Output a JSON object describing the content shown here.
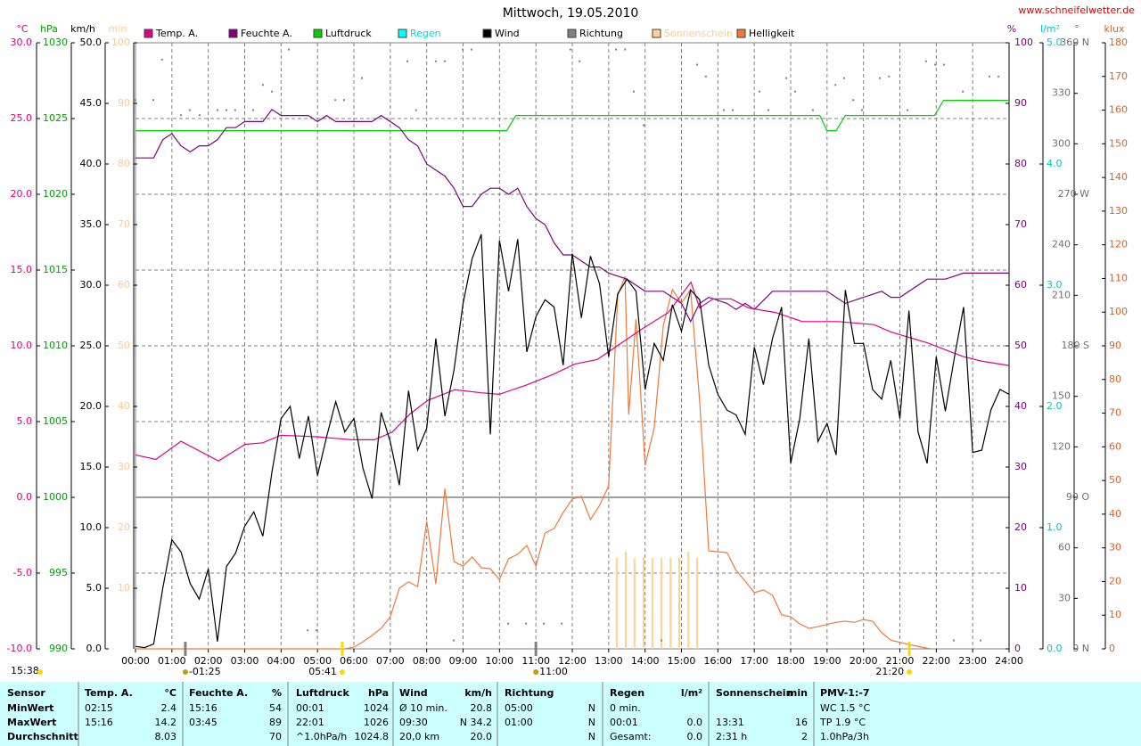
{
  "chart_data": {
    "type": "line",
    "title": "Mittwoch, 19.05.2010",
    "source": "www.schneifelwetter.de",
    "xlim": [
      0,
      24
    ],
    "xticks": [
      {
        "value": 0,
        "label": "00:00"
      },
      {
        "value": 1,
        "label": "01:00"
      },
      {
        "value": 2,
        "label": "02:00"
      },
      {
        "value": 3,
        "label": "03:00"
      },
      {
        "value": 4,
        "label": "04:00"
      },
      {
        "value": 5,
        "label": "05:00"
      },
      {
        "value": 6,
        "label": "06:00"
      },
      {
        "value": 7,
        "label": "07:00"
      },
      {
        "value": 8,
        "label": "08:00"
      },
      {
        "value": 9,
        "label": "09:00"
      },
      {
        "value": 10,
        "label": "10:00"
      },
      {
        "value": 11,
        "label": "11:00"
      },
      {
        "value": 12,
        "label": "12:00"
      },
      {
        "value": 13,
        "label": "13:00"
      },
      {
        "value": 14,
        "label": "14:00"
      },
      {
        "value": 15,
        "label": "15:00"
      },
      {
        "value": 16,
        "label": "16:00"
      },
      {
        "value": 17,
        "label": "17:00"
      },
      {
        "value": 18,
        "label": "18:00"
      },
      {
        "value": 19,
        "label": "19:00"
      },
      {
        "value": 20,
        "label": "20:00"
      },
      {
        "value": 21,
        "label": "21:00"
      },
      {
        "value": 22,
        "label": "22:00"
      },
      {
        "value": 23,
        "label": "23:00"
      },
      {
        "value": 24,
        "label": "24:00"
      }
    ],
    "grid": true,
    "grid_axis": 0,
    "zero_line": true,
    "axes": [
      {
        "unit": "°C",
        "color": "#e0007a",
        "lim": [
          -10,
          30
        ],
        "ticks": [
          {
            "value": -10,
            "label": "-10.0"
          },
          {
            "value": -5,
            "label": "-5.0"
          },
          {
            "value": 0,
            "label": "0.0"
          },
          {
            "value": 5,
            "label": "5.0"
          },
          {
            "value": 10,
            "label": "10.0"
          },
          {
            "value": 15,
            "label": "15.0"
          },
          {
            "value": 20,
            "label": "20.0"
          },
          {
            "value": 25,
            "label": "25.0"
          },
          {
            "value": 30,
            "label": "30.0"
          }
        ]
      },
      {
        "unit": "hPa",
        "color": "#00a000",
        "lim": [
          990,
          1030
        ],
        "ticks": [
          990,
          995,
          1000,
          1005,
          1010,
          1015,
          1020,
          1025,
          1030
        ]
      },
      {
        "unit": "km/h",
        "color": "#000000",
        "lim": [
          0,
          50
        ],
        "ticks": [
          {
            "value": 0,
            "label": "0.0"
          },
          {
            "value": 5,
            "label": "5.0"
          },
          {
            "value": 10,
            "label": "10.0"
          },
          {
            "value": 15,
            "label": "15.0"
          },
          {
            "value": 20,
            "label": "20.0"
          },
          {
            "value": 25,
            "label": "25.0"
          },
          {
            "value": 30,
            "label": "30.0"
          },
          {
            "value": 35,
            "label": "35.0"
          },
          {
            "value": 40,
            "label": "40.0"
          },
          {
            "value": 45,
            "label": "45.0"
          },
          {
            "value": 50,
            "label": "50.0"
          }
        ]
      },
      {
        "unit": "min",
        "color": "#ffc890",
        "lim": [
          0,
          100
        ],
        "ticks": [
          10,
          20,
          30,
          40,
          50,
          60,
          70,
          80,
          90,
          100
        ]
      },
      {
        "unit": "%",
        "color": "#800080",
        "lim": [
          0,
          100
        ],
        "ticks": [
          0,
          10,
          20,
          30,
          40,
          50,
          60,
          70,
          80,
          90,
          100
        ]
      },
      {
        "unit": "l/m²",
        "color": "#00c8c8",
        "lim": [
          0,
          5
        ],
        "ticks": [
          {
            "value": 0,
            "label": "0.0"
          },
          {
            "value": 1,
            "label": "1.0"
          },
          {
            "value": 2,
            "label": "2.0"
          },
          {
            "value": 3,
            "label": "3.0"
          },
          {
            "value": 4,
            "label": "4.0"
          },
          {
            "value": 5,
            "label": "5.0"
          }
        ]
      },
      {
        "unit": "°",
        "color": "#707070",
        "lim": [
          0,
          360
        ],
        "ticks": [
          {
            "value": 0,
            "label": "0 N"
          },
          30,
          60,
          {
            "value": 90,
            "label": "90 O"
          },
          120,
          150,
          {
            "value": 180,
            "label": "180 S"
          },
          210,
          240,
          {
            "value": 270,
            "label": "270 W"
          },
          300,
          330,
          {
            "value": 360,
            "label": "360 N"
          }
        ]
      },
      {
        "unit": "klux",
        "color": "#e06020",
        "lim": [
          0,
          180
        ],
        "ticks": [
          0,
          10,
          20,
          30,
          40,
          50,
          60,
          70,
          80,
          90,
          100,
          110,
          120,
          130,
          140,
          150,
          160,
          170,
          180
        ]
      }
    ],
    "series": [
      {
        "name": "Temp. A.",
        "color": "#e0008c",
        "axis": 0,
        "style": "line",
        "x": [
          0,
          0.56,
          1.25,
          2.28,
          3.01,
          3.5,
          3.99,
          4.97,
          5.95,
          6.56,
          7.05,
          7.54,
          8.03,
          8.77,
          9.5,
          9.99,
          10.73,
          11.46,
          12.07,
          12.69,
          13.42,
          13.91,
          14.64,
          15.26,
          15.5,
          15.87,
          16.36,
          16.85,
          17.58,
          18.32,
          19.3,
          20.28,
          20.77,
          21.75,
          22.73,
          23.22,
          24
        ],
        "values": [
          2.8,
          2.5,
          3.7,
          2.4,
          3.5,
          3.6,
          4.1,
          4.0,
          3.8,
          3.8,
          4.3,
          5.5,
          6.4,
          7.1,
          6.9,
          6.8,
          7.4,
          8.1,
          8.8,
          9.1,
          10.3,
          11.1,
          12.2,
          14.2,
          12.5,
          13.1,
          13.1,
          12.5,
          12.2,
          11.6,
          11.6,
          11.4,
          10.9,
          10.2,
          9.3,
          9.0,
          8.7
        ]
      },
      {
        "name": "Feuchte A.",
        "color": "#800080",
        "axis": 4,
        "style": "line",
        "x": [
          0,
          0.5,
          0.75,
          1,
          1.25,
          1.5,
          1.75,
          2,
          2.25,
          2.5,
          2.75,
          3,
          3.5,
          3.75,
          4,
          4.75,
          5,
          5.25,
          5.5,
          6.5,
          6.75,
          7,
          7.25,
          7.5,
          7.75,
          8,
          8.5,
          8.75,
          9,
          9.25,
          9.5,
          9.75,
          10,
          10.25,
          10.5,
          10.75,
          11,
          11.25,
          11.5,
          11.75,
          12,
          12.5,
          12.75,
          13,
          13.5,
          14,
          14.5,
          15,
          15.25,
          15.5,
          15.75,
          16.25,
          16.5,
          16.75,
          17,
          17.5,
          17.75,
          19,
          19.5,
          20,
          20.5,
          20.75,
          21,
          21.75,
          22.25,
          22.75,
          24
        ],
        "values": [
          81,
          81,
          84,
          85,
          83,
          82,
          83,
          83,
          84,
          86,
          86,
          87,
          87,
          89,
          88,
          88,
          87,
          88,
          87,
          87,
          88,
          87,
          86,
          84,
          83,
          80,
          78,
          76,
          73,
          73,
          75,
          76,
          76,
          75,
          76,
          73,
          71,
          70,
          67,
          65,
          65,
          63,
          63,
          62,
          61,
          59,
          59,
          57,
          54,
          57,
          58,
          57,
          56,
          57,
          56,
          59,
          59,
          59,
          57,
          58,
          59,
          58,
          58,
          61,
          61,
          62,
          62
        ]
      },
      {
        "name": "Luftdruck",
        "color": "#00d000",
        "axis": 1,
        "style": "line",
        "x": [
          0,
          10.2,
          10.45,
          18.8,
          19.0,
          19.25,
          19.5,
          21.95,
          22.2,
          24
        ],
        "values": [
          1024.2,
          1024.2,
          1025.2,
          1025.2,
          1024.2,
          1024.2,
          1025.2,
          1025.2,
          1026.2,
          1026.2
        ]
      },
      {
        "name": "Regen",
        "color": "#00ffff",
        "axis": 5,
        "style": "line",
        "x": [],
        "values": []
      },
      {
        "name": "Wind",
        "color": "#000000",
        "axis": 2,
        "style": "line",
        "x": [
          0,
          0.25,
          0.5,
          0.75,
          1,
          1.25,
          1.5,
          1.75,
          2,
          2.25,
          2.5,
          2.75,
          3,
          3.25,
          3.5,
          3.75,
          4,
          4.25,
          4.5,
          4.75,
          5,
          5.25,
          5.5,
          5.75,
          6,
          6.25,
          6.5,
          6.75,
          7,
          7.25,
          7.5,
          7.75,
          8,
          8.25,
          8.5,
          8.75,
          9,
          9.25,
          9.5,
          9.75,
          10,
          10.25,
          10.5,
          10.75,
          11,
          11.25,
          11.5,
          11.75,
          12,
          12.25,
          12.5,
          12.75,
          13,
          13.25,
          13.5,
          13.75,
          14,
          14.25,
          14.5,
          14.75,
          15,
          15.25,
          15.5,
          15.75,
          16,
          16.25,
          16.5,
          16.75,
          17,
          17.25,
          17.5,
          17.75,
          18,
          18.25,
          18.5,
          18.75,
          19,
          19.25,
          19.5,
          19.75,
          20,
          20.25,
          20.5,
          20.75,
          21,
          21.25,
          21.5,
          21.75,
          22,
          22.25,
          22.5,
          22.75,
          23,
          23.25,
          23.5,
          23.75,
          24
        ],
        "values": [
          0.2,
          0.1,
          0.4,
          5,
          9,
          8,
          5.4,
          4.1,
          6.6,
          0.6,
          6.8,
          7.9,
          10.1,
          11.3,
          9.3,
          14.6,
          19,
          20,
          15.7,
          19.2,
          14.3,
          17.5,
          20.4,
          17.9,
          19,
          14.9,
          12.4,
          19.5,
          17.1,
          13.5,
          21.3,
          16.4,
          18.2,
          25.6,
          19.2,
          23,
          28.5,
          32.2,
          34.2,
          17.7,
          33.7,
          29.5,
          33.8,
          24.5,
          27.4,
          28.8,
          28.2,
          23.4,
          32.6,
          27.3,
          32.4,
          30.1,
          24.1,
          29.3,
          30.5,
          29.5,
          21.4,
          25.2,
          23.8,
          28.4,
          26.2,
          29.6,
          28.8,
          23.4,
          21,
          19.7,
          19.3,
          17.7,
          24.9,
          21.8,
          25.6,
          28.2,
          15.3,
          19,
          25.6,
          17.1,
          18.6,
          16,
          29.6,
          25.2,
          25.2,
          21.4,
          20.6,
          23.8,
          19,
          27.9,
          17.9,
          15.3,
          24.1,
          19.6,
          24.1,
          28.2,
          16.2,
          16.4,
          19.7,
          21.4,
          21
        ]
      },
      {
        "name": "Richtung",
        "color": "#808080",
        "axis": 6,
        "style": "dots",
        "x": [
          0,
          0.49,
          0.73,
          1.25,
          1.49,
          1.76,
          2.25,
          2.5,
          2.74,
          3.23,
          3.5,
          3.75,
          4.21,
          4.73,
          4.97,
          5.49,
          5.73,
          6.22,
          7.47,
          7.71,
          8.25,
          8.5,
          8.74,
          8.99,
          9.23,
          10.24,
          10.73,
          11.22,
          11.71,
          11.95,
          12.2,
          13.2,
          13.45,
          13.69,
          13.96,
          14.45,
          15.43,
          15.67,
          16.16,
          16.41,
          17.14,
          17.39,
          17.88,
          18.12,
          18.61,
          19.23,
          19.47,
          19.72,
          19.96,
          20.45,
          20.7,
          21.21,
          21.72,
          21.97,
          22.21,
          22.48,
          22.73,
          23.22,
          23.46,
          23.71
        ],
        "values": [
          326,
          326,
          350,
          317,
          320,
          317,
          320,
          320,
          320,
          320,
          335,
          331,
          356,
          11,
          11,
          326,
          326,
          339,
          349,
          320,
          349,
          349,
          5,
          356,
          356,
          15,
          15,
          15,
          15,
          356,
          349,
          356,
          356,
          331,
          311,
          5,
          347,
          340,
          320,
          320,
          331,
          320,
          339,
          331,
          320,
          335,
          339,
          326,
          320,
          339,
          340,
          320,
          349,
          347,
          347,
          5,
          331,
          5,
          340,
          340
        ]
      },
      {
        "name": "Sonnenschein",
        "color": "#ffd090",
        "axis": 3,
        "style": "bars",
        "x": [
          13.22,
          13.47,
          13.71,
          13.96,
          14.2,
          14.45,
          14.7,
          14.94,
          15.19,
          15.43
        ],
        "values": [
          15,
          16,
          15,
          15,
          15,
          15,
          15,
          15,
          16,
          15
        ]
      },
      {
        "name": "Helligkeit",
        "color": "#f07838",
        "axis": 7,
        "style": "line",
        "x": [
          0,
          5.75,
          6,
          6.25,
          6.5,
          6.75,
          7,
          7.25,
          7.5,
          7.75,
          8,
          8.25,
          8.5,
          8.75,
          9,
          9.25,
          9.5,
          9.75,
          10,
          10.25,
          10.5,
          10.75,
          11,
          11.25,
          11.5,
          11.75,
          12,
          12.25,
          12.5,
          12.75,
          13,
          13.25,
          13.45,
          13.55,
          13.75,
          14,
          14.25,
          14.5,
          14.75,
          15,
          15.25,
          15.5,
          15.75,
          16.25,
          16.5,
          16.75,
          17,
          17.25,
          17.5,
          17.75,
          18,
          18.25,
          18.5,
          18.75,
          19.25,
          19.5,
          19.75,
          20,
          20.25,
          20.5,
          20.75,
          21.25,
          21.6,
          21.85
        ],
        "values": [
          0,
          0,
          0.5,
          2.1,
          4,
          6.1,
          9.5,
          18,
          19.9,
          18.5,
          37.9,
          19.3,
          47.6,
          25.9,
          24.6,
          27.3,
          24.1,
          23.8,
          20.6,
          26.7,
          28.1,
          30.7,
          24.6,
          34.4,
          35.7,
          40.5,
          44.5,
          45.3,
          38.4,
          42.6,
          48.4,
          105,
          110.6,
          69.6,
          98,
          54.5,
          65.6,
          96,
          106.7,
          102.7,
          106.7,
          73.6,
          29.1,
          28.6,
          23.3,
          20.1,
          16.7,
          17.5,
          15.9,
          10.1,
          9.5,
          7.4,
          6.1,
          6.6,
          7.9,
          8.2,
          7.9,
          8.7,
          8.2,
          4.8,
          2.6,
          1.3,
          0.5,
          0
        ]
      }
    ],
    "daylight": "15:38",
    "annotations": [
      {
        "label": "-01:25",
        "x": 1.37,
        "kind": "moon"
      },
      {
        "label": "05:41",
        "x": 5.68,
        "kind": "sun"
      },
      {
        "label": "11:00",
        "x": 11.0,
        "kind": "moon"
      },
      {
        "label": "21:20",
        "x": 21.26,
        "kind": "sun"
      }
    ]
  },
  "table": {
    "rows": [
      [
        "Sensor",
        "Temp. A.",
        "°C",
        "Feuchte A.",
        "%",
        "Luftdruck",
        "hPa",
        "Wind",
        "km/h",
        "Richtung",
        null,
        "Regen",
        "l/m²",
        "Sonnenschein",
        "min",
        "PMV-1:-7"
      ],
      [
        "MinWert",
        "02:15",
        "2.4",
        "15:16",
        "54",
        "00:01",
        "1024",
        "Ø 10 min.",
        "20.8",
        "05:00",
        "N",
        "0 min.",
        null,
        null,
        null,
        "WC 1.5 °C"
      ],
      [
        "MaxWert",
        "15:16",
        "14.2",
        "03:45",
        "89",
        "22:01",
        "1026",
        "09:30",
        "N 34.2",
        "01:00",
        "N",
        "00:01",
        "0.0",
        "13:31",
        "16",
        "TP 1.9 °C"
      ],
      [
        "Durchschnitt",
        null,
        "8.03",
        null,
        "70",
        "^1.0hPa/h",
        "1024.8",
        "20,0 km",
        "20.0",
        null,
        "N",
        "Gesamt:",
        "0.0",
        "2:31 h",
        "2",
        "1.0hPa/3h"
      ]
    ]
  }
}
